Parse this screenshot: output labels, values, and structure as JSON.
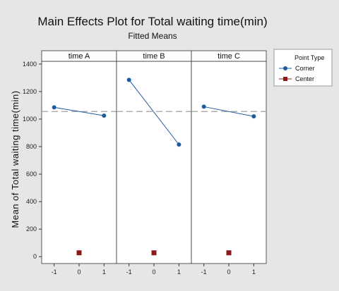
{
  "chart_data": {
    "type": "line",
    "title": "Main Effects Plot for Total waiting time(min)",
    "subtitle": "Fitted Means",
    "ylabel": "Mean of Total waiting time(min)",
    "ylim": [
      -50,
      1420
    ],
    "yticks": [
      0,
      200,
      400,
      600,
      800,
      1000,
      1200,
      1400
    ],
    "xtick_labels": [
      "-1",
      "0",
      "1"
    ],
    "overall_mean": 1055,
    "panels": [
      {
        "label": "time  A",
        "corner": [
          {
            "x": -1,
            "y": 1085
          },
          {
            "x": 1,
            "y": 1025
          }
        ],
        "center": [
          {
            "x": 0,
            "y": 28
          }
        ]
      },
      {
        "label": "time B",
        "corner": [
          {
            "x": -1,
            "y": 1285
          },
          {
            "x": 1,
            "y": 815
          }
        ],
        "center": [
          {
            "x": 0,
            "y": 28
          }
        ]
      },
      {
        "label": "time C",
        "corner": [
          {
            "x": -1,
            "y": 1090
          },
          {
            "x": 1,
            "y": 1020
          }
        ],
        "center": [
          {
            "x": 0,
            "y": 28
          }
        ]
      }
    ],
    "legend": {
      "title": "Point Type",
      "placement": "right",
      "entries": [
        {
          "name": "Corner",
          "color": "#1f5a9e",
          "marker": "circle"
        },
        {
          "name": "Center",
          "color": "#8b1a1a",
          "marker": "square"
        }
      ]
    },
    "colors": {
      "background": "#e6e6e6",
      "plot_background": "#ffffff",
      "corner": "#1f5a9e",
      "center": "#8b1a1a",
      "reference_line": "#a0a0a0"
    }
  }
}
